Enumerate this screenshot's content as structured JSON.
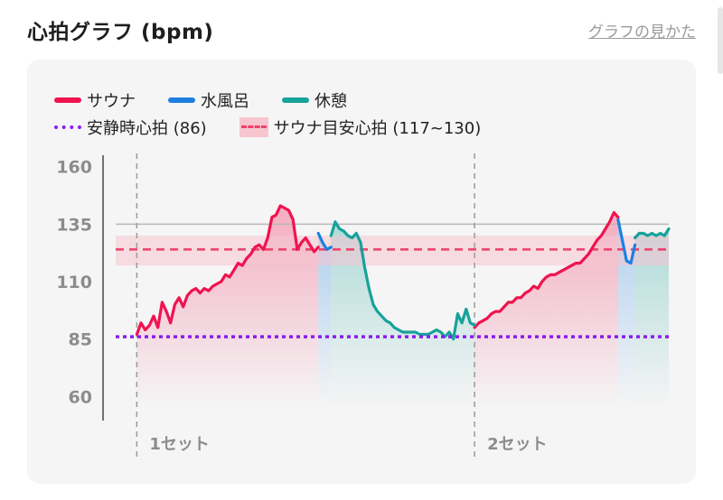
{
  "header": {
    "title": "心拍グラフ (bpm)",
    "help_link": "グラフの見かた"
  },
  "legend": {
    "sauna": "サウナ",
    "cold_bath": "水風呂",
    "rest": "休憩",
    "resting_hr": "安静時心拍 (86)",
    "target_zone": "サウナ目安心拍 (117~130)"
  },
  "colors": {
    "sauna": "#f0134f",
    "cold_bath": "#1e7fe0",
    "rest": "#17a29a",
    "resting_hr": "#8a1cf0",
    "target_line": "#ee3f6a",
    "target_band": "#f6c5cf"
  },
  "chart_data": {
    "type": "line",
    "x_unit": "minutes",
    "ylim": [
      55,
      165
    ],
    "yticks": [
      60,
      85,
      110,
      135,
      160
    ],
    "reference_lines": [
      135
    ],
    "resting_hr": 86,
    "target_zone": [
      117,
      130
    ],
    "target_line": 124,
    "grid": false,
    "legend_position": "top-left",
    "set_labels": [
      {
        "label": "1セット",
        "x": 0
      },
      {
        "label": "2セット",
        "x": 40
      }
    ],
    "series": [
      {
        "name": "サウナ",
        "segments": [
          {
            "x": [
              0,
              0.5,
              1,
              1.5,
              2,
              2.5,
              3,
              3.5,
              4,
              4.5,
              5,
              5.5,
              6,
              6.5,
              7,
              7.5,
              8,
              8.5,
              9,
              9.5,
              10,
              10.5,
              11,
              11.5,
              12,
              12.5,
              13,
              13.5,
              14,
              14.5,
              15,
              15.5,
              16,
              16.5,
              17,
              17.5,
              18,
              18.5,
              19,
              19.5,
              20,
              20.5,
              21,
              21.5
            ],
            "y": [
              87,
              92,
              89,
              91,
              95,
              90,
              101,
              97,
              92,
              100,
              103,
              99,
              104,
              106,
              107,
              105,
              107,
              106,
              108,
              109,
              110,
              113,
              112,
              115,
              118,
              117,
              120,
              122,
              125,
              126,
              124,
              129,
              138,
              139,
              143,
              142,
              141,
              137,
              124,
              127,
              129,
              126,
              123,
              125
            ]
          },
          {
            "x": [
              40,
              40.5,
              41,
              41.5,
              42,
              42.5,
              43,
              43.5,
              44,
              44.5,
              45,
              45.5,
              46,
              46.5,
              47,
              47.5,
              48,
              48.5,
              49,
              49.5,
              50,
              50.5,
              51,
              51.5,
              52,
              52.5,
              53,
              53.5,
              54,
              54.5,
              55,
              55.5,
              56,
              56.5,
              57
            ],
            "y": [
              90,
              92,
              93,
              94,
              96,
              97,
              97,
              99,
              101,
              101,
              103,
              103,
              105,
              106,
              108,
              107,
              110,
              112,
              113,
              113,
              114,
              115,
              116,
              117,
              118,
              118,
              120,
              122,
              125,
              128,
              130,
              133,
              136,
              140,
              138
            ]
          }
        ]
      },
      {
        "name": "水風呂",
        "segments": [
          {
            "x": [
              21.5,
              22,
              22.5,
              23
            ],
            "y": [
              131,
              127,
              124,
              125
            ]
          },
          {
            "x": [
              57,
              57.5,
              58,
              58.5,
              59
            ],
            "y": [
              137,
              128,
              119,
              118,
              126
            ]
          }
        ]
      },
      {
        "name": "休憩",
        "segments": [
          {
            "x": [
              23,
              23.5,
              24,
              24.5,
              25,
              25.5,
              26,
              26.5,
              27,
              27.5,
              28,
              28.5,
              29,
              29.5,
              30,
              30.5,
              31,
              31.5,
              32,
              32.5,
              33,
              33.5,
              34,
              34.5,
              35,
              35.5,
              36,
              36.5,
              37,
              37.5,
              38,
              38.5,
              39,
              39.5,
              40
            ],
            "y": [
              130,
              136,
              133,
              132,
              130,
              129,
              131,
              127,
              116,
              107,
              100,
              97,
              95,
              93,
              92,
              90,
              89,
              88,
              88,
              88,
              88,
              87,
              87,
              87,
              88,
              89,
              88,
              86,
              88,
              85,
              96,
              92,
              98,
              92,
              91
            ]
          },
          {
            "x": [
              59,
              59.5,
              60,
              60.5,
              61,
              61.5,
              62,
              62.5,
              63
            ],
            "y": [
              129,
              131,
              131,
              130,
              131,
              130,
              131,
              130,
              133
            ]
          }
        ]
      }
    ],
    "shaded_phases": [
      {
        "series": "サウナ",
        "x": [
          0,
          21.5
        ]
      },
      {
        "series": "水風呂",
        "x": [
          21.5,
          23
        ]
      },
      {
        "series": "休憩",
        "x": [
          23,
          40
        ]
      },
      {
        "series": "サウナ",
        "x": [
          40,
          57
        ]
      },
      {
        "series": "水風呂",
        "x": [
          57,
          59
        ]
      },
      {
        "series": "休憩",
        "x": [
          59,
          63
        ]
      }
    ],
    "xlim": [
      -2.5,
      63
    ]
  }
}
